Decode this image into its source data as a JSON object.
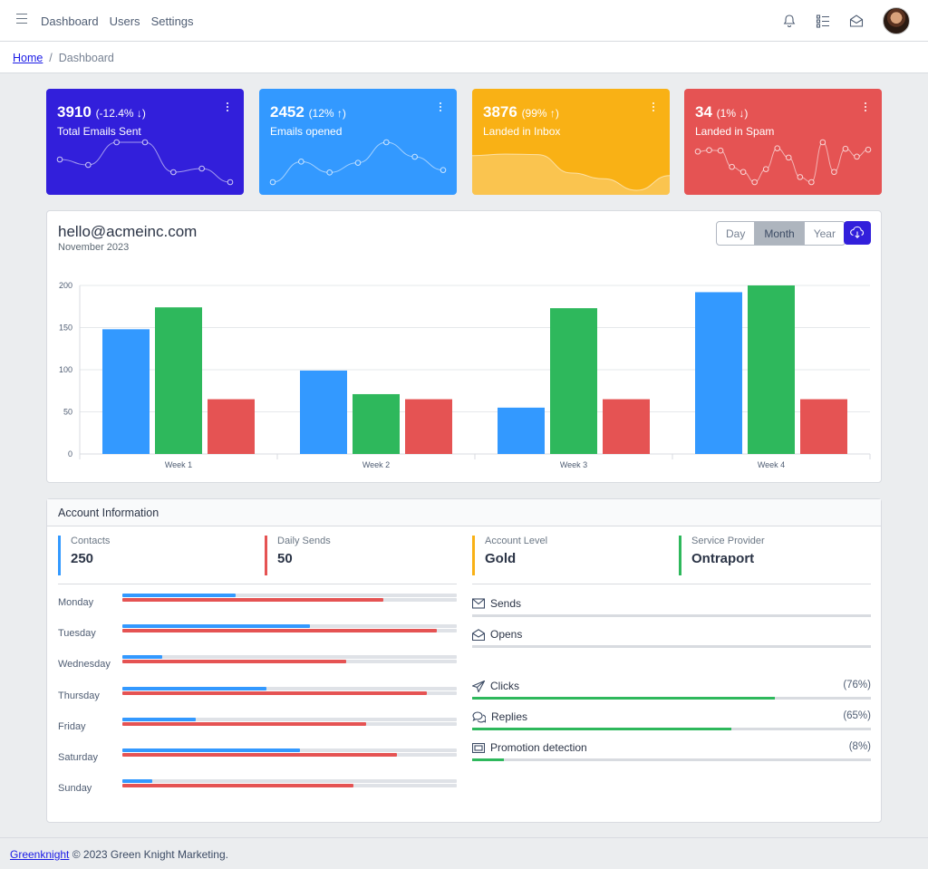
{
  "nav": {
    "items": [
      "Dashboard",
      "Users",
      "Settings"
    ]
  },
  "breadcrumb": {
    "home": "Home",
    "current": "Dashboard"
  },
  "widgets": [
    {
      "value": "3910",
      "change": "(-12.4% ↓)",
      "label": "Total Emails Sent",
      "color": "#321fdb",
      "chart": "line",
      "points": [
        65,
        59,
        84,
        84,
        51,
        55,
        40
      ]
    },
    {
      "value": "2452",
      "change": "(12% ↑)",
      "label": "Emails opened",
      "color": "#3399ff",
      "chart": "line",
      "points": [
        1,
        18,
        9,
        17,
        34,
        22,
        11
      ]
    },
    {
      "value": "3876",
      "change": "(99% ↑)",
      "label": "Landed in Inbox",
      "color": "#f9b115",
      "chart": "area",
      "points": [
        78,
        81,
        80,
        45,
        34,
        12,
        40
      ]
    },
    {
      "value": "34",
      "change": "(1% ↓)",
      "label": "Landed in Spam",
      "color": "#e55353",
      "chart": "line",
      "points": [
        78,
        81,
        80,
        45,
        34,
        12,
        40,
        85,
        65,
        23,
        12,
        98,
        34,
        84,
        67,
        82
      ]
    }
  ],
  "main": {
    "account": "hello@acmeinc.com",
    "period": "November 2023",
    "ranges": [
      "Day",
      "Month",
      "Year"
    ],
    "active_range": "Month"
  },
  "chart_data": {
    "type": "bar",
    "categories": [
      "Week 1",
      "Week 2",
      "Week 3",
      "Week 4"
    ],
    "series": [
      {
        "color": "#3399ff",
        "values": [
          148,
          99,
          55,
          192
        ]
      },
      {
        "color": "#2eb85c",
        "values": [
          174,
          71,
          173,
          200
        ]
      },
      {
        "color": "#e55353",
        "values": [
          65,
          65,
          65,
          65
        ]
      }
    ],
    "ylim": [
      0,
      200
    ],
    "yticks": [
      0,
      50,
      100,
      150,
      200
    ],
    "grid": true
  },
  "info": {
    "title": "Account Information",
    "stats": [
      {
        "label": "Contacts",
        "value": "250",
        "color": "#3399ff"
      },
      {
        "label": "Daily Sends",
        "value": "50",
        "color": "#e55353"
      },
      {
        "label": "Account Level",
        "value": "Gold",
        "color": "#f9b115"
      },
      {
        "label": "Service Provider",
        "value": "Ontraport",
        "color": "#2eb85c"
      }
    ],
    "days": [
      {
        "day": "Monday",
        "blue": 0.34,
        "red": 0.78
      },
      {
        "day": "Tuesday",
        "blue": 0.56,
        "red": 0.94
      },
      {
        "day": "Wednesday",
        "blue": 0.12,
        "red": 0.67
      },
      {
        "day": "Thursday",
        "blue": 0.43,
        "red": 0.91
      },
      {
        "day": "Friday",
        "blue": 0.22,
        "red": 0.73
      },
      {
        "day": "Saturday",
        "blue": 0.53,
        "red": 0.82
      },
      {
        "day": "Sunday",
        "blue": 0.09,
        "red": 0.69
      }
    ],
    "metrics": [
      {
        "label": "Sends",
        "icon": "envelope-icon",
        "percent": ""
      },
      {
        "label": "Opens",
        "icon": "envelope-open-icon",
        "percent": ""
      },
      {
        "label": "Clicks",
        "icon": "send-icon",
        "percent": "(76%)",
        "fill": 0.76
      },
      {
        "label": "Replies",
        "icon": "chat-icon",
        "percent": "(65%)",
        "fill": 0.65
      },
      {
        "label": "Promotion detection",
        "icon": "ad-icon",
        "percent": "(8%)",
        "fill": 0.08
      }
    ]
  },
  "footer": {
    "link": "Greenknight",
    "text": "© 2023 Green Knight Marketing."
  }
}
